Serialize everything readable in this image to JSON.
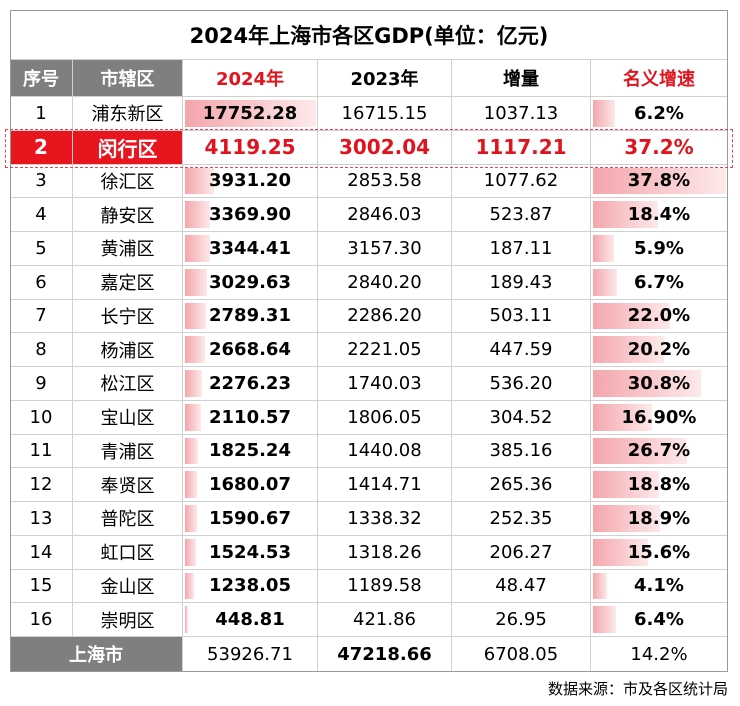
{
  "title": "2024年上海市各区GDP(单位：亿元)",
  "table": {
    "header": [
      "序号",
      "市辖区",
      "2024年",
      "2023年",
      "增量",
      "名义增速"
    ],
    "rows": [
      [
        "1",
        "浦东新区",
        "17752.28",
        "16715.15",
        "1037.13",
        "6.2%"
      ],
      [
        "2",
        "闵行区",
        "4119.25",
        "3002.04",
        "1117.21",
        "37.2%"
      ],
      [
        "3",
        "徐汇区",
        "3931.20",
        "2853.58",
        "1077.62",
        "37.8%"
      ],
      [
        "4",
        "静安区",
        "3369.90",
        "2846.03",
        "523.87",
        "18.4%"
      ],
      [
        "5",
        "黄浦区",
        "3344.41",
        "3157.30",
        "187.11",
        "5.9%"
      ],
      [
        "6",
        "嘉定区",
        "3029.63",
        "2840.20",
        "189.43",
        "6.7%"
      ],
      [
        "7",
        "长宁区",
        "2789.31",
        "2286.20",
        "503.11",
        "22.0%"
      ],
      [
        "8",
        "杨浦区",
        "2668.64",
        "2221.05",
        "447.59",
        "20.2%"
      ],
      [
        "9",
        "松江区",
        "2276.23",
        "1740.03",
        "536.20",
        "30.8%"
      ],
      [
        "10",
        "宝山区",
        "2110.57",
        "1806.05",
        "304.52",
        "16.90%"
      ],
      [
        "11",
        "青浦区",
        "1825.24",
        "1440.08",
        "385.16",
        "26.7%"
      ],
      [
        "12",
        "奉贤区",
        "1680.07",
        "1414.71",
        "265.36",
        "18.8%"
      ],
      [
        "13",
        "普陀区",
        "1590.67",
        "1338.32",
        "252.35",
        "18.9%"
      ],
      [
        "14",
        "虹口区",
        "1524.53",
        "1318.26",
        "206.27",
        "15.6%"
      ],
      [
        "15",
        "金山区",
        "1238.05",
        "1189.58",
        "48.47",
        "4.1%"
      ],
      [
        "16",
        "崇明区",
        "448.81",
        "421.86",
        "26.95",
        "6.4%"
      ]
    ],
    "total": [
      "上海市",
      "53926.71",
      "47218.66",
      "6708.05",
      "14.2%"
    ]
  },
  "source": "数据来源：市及各区统计局"
}
